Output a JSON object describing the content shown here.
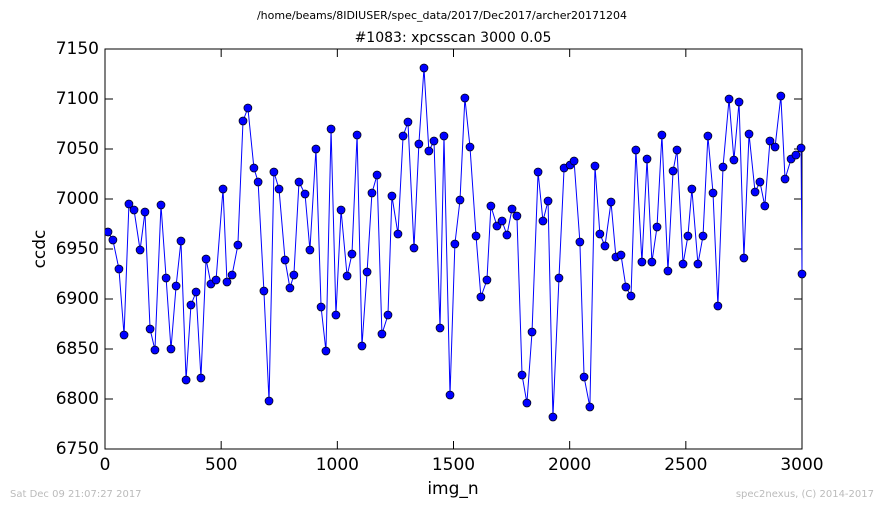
{
  "chart_data": {
    "type": "line",
    "suptitle": "/home/beams/8IDIUSER/spec_data/2017/Dec2017/archer20171204",
    "title": "#1083: xpcsscan 3000 0.05",
    "xlabel": "img_n",
    "ylabel": "ccdc",
    "footer_left": "Sat Dec 09 21:07:27 2017",
    "footer_right": "spec2nexus, (C) 2014-2017",
    "xlim": [
      0,
      3000
    ],
    "xticks": [
      0,
      500,
      1000,
      1500,
      2000,
      2500,
      3000
    ],
    "ylim": [
      6750,
      7150
    ],
    "yticks": [
      6750,
      6800,
      6850,
      6900,
      6950,
      7000,
      7050,
      7100,
      7150
    ],
    "x": [
      13,
      34,
      60,
      82,
      103,
      125,
      151,
      172,
      194,
      215,
      241,
      263,
      284,
      306,
      327,
      349,
      370,
      392,
      413,
      435,
      456,
      478,
      508,
      525,
      547,
      572,
      594,
      615,
      641,
      659,
      684,
      706,
      727,
      749,
      775,
      796,
      813,
      835,
      861,
      882,
      908,
      930,
      951,
      973,
      994,
      1016,
      1042,
      1063,
      1085,
      1106,
      1128,
      1149,
      1171,
      1192,
      1218,
      1235,
      1261,
      1283,
      1304,
      1330,
      1351,
      1373,
      1394,
      1416,
      1442,
      1459,
      1485,
      1506,
      1528,
      1549,
      1571,
      1597,
      1618,
      1644,
      1661,
      1687,
      1709,
      1730,
      1752,
      1773,
      1795,
      1816,
      1838,
      1864,
      1885,
      1907,
      1928,
      1954,
      1976,
      2002,
      2019,
      2044,
      2062,
      2087,
      2109,
      2130,
      2152,
      2178,
      2199,
      2221,
      2242,
      2264,
      2285,
      2311,
      2333,
      2354,
      2376,
      2397,
      2423,
      2445,
      2462,
      2488,
      2509,
      2526,
      2552,
      2574,
      2595,
      2617,
      2638,
      2660,
      2686,
      2707,
      2729,
      2750,
      2772,
      2798,
      2819,
      2840,
      2862,
      2884,
      2909,
      2927,
      2953,
      2974,
      2996,
      3000
    ],
    "series": [
      {
        "color": "#0000ff",
        "values": [
          6967,
          6959,
          6930,
          6864,
          6995,
          6989,
          6949,
          6987,
          6870,
          6849,
          6994,
          6921,
          6850,
          6913,
          6958,
          6819,
          6894,
          6907,
          6821,
          6940,
          6915,
          6919,
          7010,
          6917,
          6924,
          6954,
          7078,
          7091,
          7031,
          7017,
          6908,
          6798,
          7027,
          7010,
          6939,
          6911,
          6924,
          7017,
          7005,
          6949,
          7050,
          6892,
          6848,
          7070,
          6884,
          6989,
          6923,
          6945,
          7064,
          6853,
          6927,
          7006,
          7024,
          6865,
          6884,
          7003,
          6965,
          7063,
          7077,
          6951,
          7055,
          7131,
          7048,
          7058,
          6871,
          7063,
          6804,
          6955,
          6999,
          7101,
          7052,
          6963,
          6902,
          6919,
          6993,
          6973,
          6978,
          6964,
          6990,
          6983,
          6824,
          6796,
          6867,
          7027,
          6978,
          6998,
          6782,
          6921,
          7031,
          7034,
          7038,
          6957,
          6822,
          6792,
          7033,
          6965,
          6953,
          6997,
          6942,
          6944,
          6912,
          6903,
          7049,
          6937,
          7040,
          6937,
          6972,
          7064,
          6928,
          7028,
          7049,
          6935,
          6963,
          7010,
          6935,
          6963,
          7063,
          7006,
          6893,
          7032,
          7100,
          7039,
          7097,
          6941,
          7065,
          7007,
          7017,
          6993,
          7058,
          7052,
          7103,
          7020,
          7040,
          7044,
          7051,
          6925
        ]
      }
    ]
  }
}
